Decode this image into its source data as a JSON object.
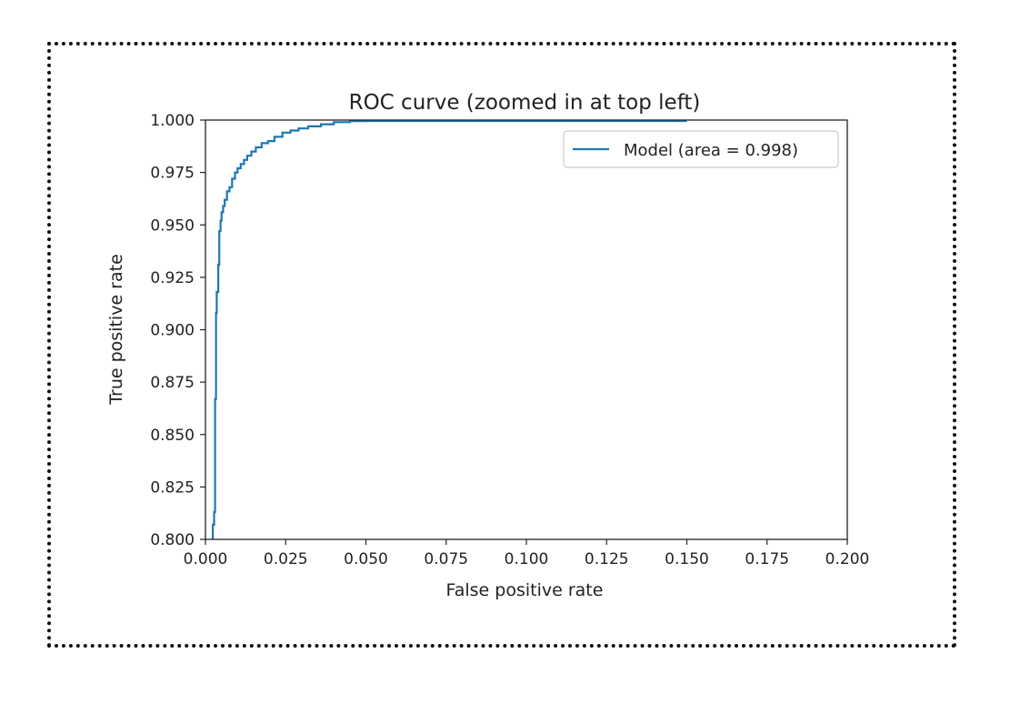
{
  "chart_data": {
    "type": "line",
    "title": "ROC curve (zoomed in at top left)",
    "xlabel": "False positive rate",
    "ylabel": "True positive rate",
    "xlim": [
      0.0,
      0.2
    ],
    "ylim": [
      0.8,
      1.0
    ],
    "x_ticks": [
      "0.000",
      "0.025",
      "0.050",
      "0.075",
      "0.100",
      "0.125",
      "0.150",
      "0.175",
      "0.200"
    ],
    "y_ticks": [
      "0.800",
      "0.825",
      "0.850",
      "0.875",
      "0.900",
      "0.925",
      "0.950",
      "0.975",
      "1.000"
    ],
    "grid": false,
    "legend_position": "top-right",
    "series": [
      {
        "name": "Model (area = 0.998)",
        "color": "#1f77b4",
        "x": [
          0.0023,
          0.0023,
          0.0027,
          0.0027,
          0.003,
          0.003,
          0.0033,
          0.0033,
          0.0035,
          0.0035,
          0.004,
          0.004,
          0.0043,
          0.0043,
          0.0047,
          0.0047,
          0.005,
          0.005,
          0.0055,
          0.0055,
          0.006,
          0.006,
          0.0067,
          0.0067,
          0.0075,
          0.0075,
          0.0083,
          0.0083,
          0.0092,
          0.0092,
          0.01,
          0.01,
          0.011,
          0.011,
          0.012,
          0.012,
          0.013,
          0.013,
          0.0143,
          0.0143,
          0.0157,
          0.0157,
          0.0175,
          0.0175,
          0.0195,
          0.0195,
          0.0215,
          0.0215,
          0.024,
          0.024,
          0.0265,
          0.0265,
          0.029,
          0.029,
          0.032,
          0.032,
          0.036,
          0.036,
          0.04,
          0.04,
          0.045,
          0.045,
          0.05,
          0.05,
          0.0555,
          0.0555,
          0.15
        ],
        "y": [
          0.8,
          0.807,
          0.807,
          0.813,
          0.813,
          0.867,
          0.867,
          0.908,
          0.908,
          0.918,
          0.918,
          0.931,
          0.931,
          0.947,
          0.947,
          0.952,
          0.952,
          0.956,
          0.956,
          0.959,
          0.959,
          0.962,
          0.962,
          0.966,
          0.966,
          0.968,
          0.968,
          0.972,
          0.972,
          0.975,
          0.975,
          0.977,
          0.977,
          0.979,
          0.979,
          0.981,
          0.981,
          0.983,
          0.983,
          0.985,
          0.985,
          0.987,
          0.987,
          0.989,
          0.989,
          0.99,
          0.99,
          0.992,
          0.992,
          0.994,
          0.994,
          0.995,
          0.995,
          0.996,
          0.996,
          0.997,
          0.997,
          0.998,
          0.998,
          0.999,
          0.999,
          0.9995,
          0.9995,
          1.0,
          1.0,
          1.0,
          1.0
        ]
      }
    ]
  }
}
